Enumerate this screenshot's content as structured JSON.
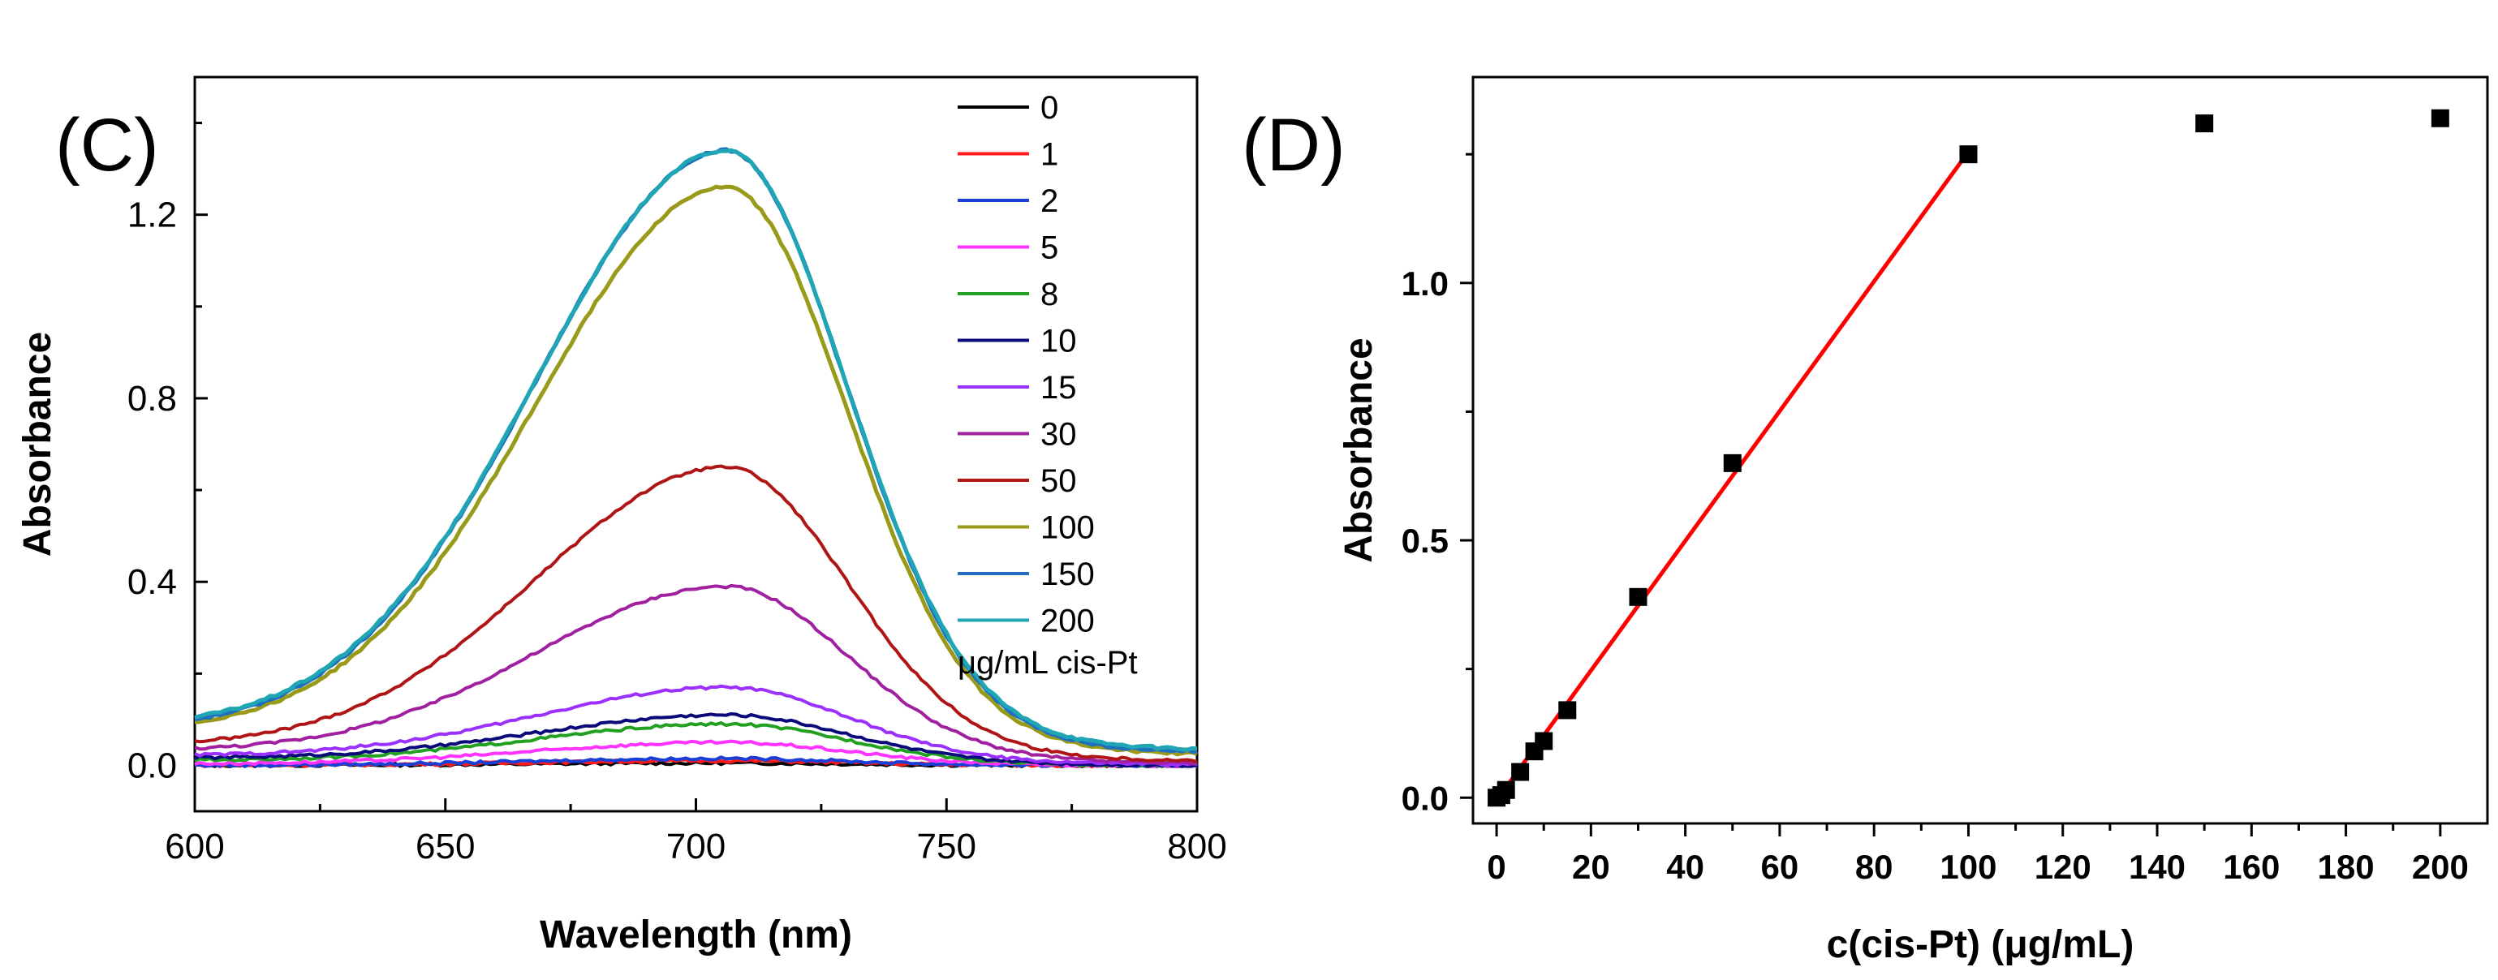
{
  "chart_data": [
    {
      "type": "line",
      "panel_label": "(C)",
      "title": "",
      "xlabel": "Wavelength (nm)",
      "ylabel": "Absorbance",
      "xlim": [
        600,
        800
      ],
      "ylim": [
        -0.1,
        1.5
      ],
      "xticks": [
        600,
        650,
        700,
        750,
        800
      ],
      "yticks": [
        0.0,
        0.4,
        0.8,
        1.2
      ],
      "xtick_labels": [
        "600",
        "650",
        "700",
        "750",
        "800"
      ],
      "ytick_labels": [
        "0.0",
        "0.4",
        "0.8",
        "1.2"
      ],
      "peak_wavelength_nm": 706,
      "legend_title": "μg/mL cis-Pt",
      "legend_position": "top-right",
      "series": [
        {
          "name": "0",
          "color": "#000000",
          "peak": 0.005,
          "baseline_left": 0.0,
          "baseline_right": 0.0
        },
        {
          "name": "1",
          "color": "#ff1a1a",
          "peak": 0.01,
          "baseline_left": 0.0,
          "baseline_right": 0.0
        },
        {
          "name": "2",
          "color": "#1a3fd9",
          "peak": 0.015,
          "baseline_left": 0.0,
          "baseline_right": 0.0
        },
        {
          "name": "5",
          "color": "#ff33ff",
          "peak": 0.05,
          "baseline_left": 0.003,
          "baseline_right": 0.0
        },
        {
          "name": "8",
          "color": "#22a022",
          "peak": 0.09,
          "baseline_left": 0.01,
          "baseline_right": 0.0
        },
        {
          "name": "10",
          "color": "#0a0a7a",
          "peak": 0.11,
          "baseline_left": 0.015,
          "baseline_right": 0.0
        },
        {
          "name": "15",
          "color": "#9b30ff",
          "peak": 0.17,
          "baseline_left": 0.02,
          "baseline_right": 0.002
        },
        {
          "name": "30",
          "color": "#a020a0",
          "peak": 0.39,
          "baseline_left": 0.03,
          "baseline_right": 0.005
        },
        {
          "name": "50",
          "color": "#b01515",
          "peak": 0.65,
          "baseline_left": 0.04,
          "baseline_right": 0.01
        },
        {
          "name": "100",
          "color": "#9a9a1a",
          "peak": 1.26,
          "baseline_left": 0.07,
          "baseline_right": 0.025
        },
        {
          "name": "150",
          "color": "#1f6fbf",
          "peak": 1.34,
          "baseline_left": 0.075,
          "baseline_right": 0.03
        },
        {
          "name": "200",
          "color": "#20a5b5",
          "peak": 1.34,
          "baseline_left": 0.08,
          "baseline_right": 0.035
        }
      ]
    },
    {
      "type": "scatter",
      "panel_label": "(D)",
      "title": "",
      "xlabel": "c(cis-Pt) (μg/mL)",
      "ylabel": "Absorbance",
      "xlim": [
        -5,
        210
      ],
      "ylim": [
        -0.05,
        1.4
      ],
      "xticks": [
        0,
        20,
        40,
        60,
        80,
        100,
        120,
        140,
        160,
        180,
        200
      ],
      "yticks": [
        0.0,
        0.5,
        1.0
      ],
      "xtick_labels": [
        "0",
        "20",
        "40",
        "60",
        "80",
        "100",
        "120",
        "140",
        "160",
        "180",
        "200"
      ],
      "ytick_labels": [
        "0.0",
        "0.5",
        "1.0"
      ],
      "points": {
        "x": [
          0,
          1,
          2,
          5,
          8,
          10,
          15,
          30,
          50,
          100,
          150,
          200
        ],
        "y": [
          0.0,
          0.005,
          0.015,
          0.05,
          0.09,
          0.11,
          0.17,
          0.39,
          0.65,
          1.25,
          1.31,
          1.32
        ]
      },
      "fit_line": {
        "x": [
          0,
          100
        ],
        "y": [
          -0.005,
          1.255
        ],
        "color": "#ff0000"
      },
      "marker_color": "#000000"
    }
  ]
}
